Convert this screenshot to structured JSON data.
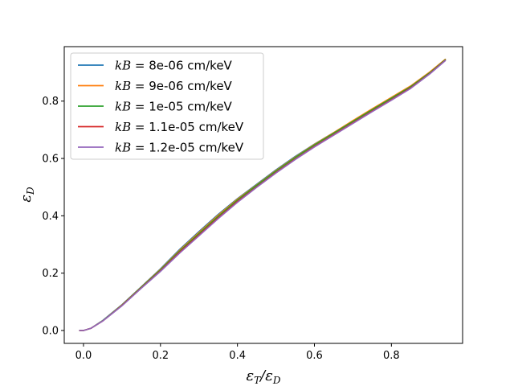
{
  "chart_data": {
    "type": "line",
    "title": "",
    "xlabel": "εT/εD",
    "ylabel": "εD",
    "xlim": [
      -0.05,
      0.985
    ],
    "ylim": [
      -0.045,
      0.99
    ],
    "xticks": [
      0.0,
      0.2,
      0.4,
      0.6,
      0.8
    ],
    "yticks": [
      0.0,
      0.2,
      0.4,
      0.6,
      0.8
    ],
    "xtick_labels": [
      "0.0",
      "0.2",
      "0.4",
      "0.6",
      "0.8"
    ],
    "ytick_labels": [
      "0.0",
      "0.2",
      "0.4",
      "0.6",
      "0.8"
    ],
    "grid": false,
    "legend_position": "top-left",
    "series": [
      {
        "name": "kB = 8e-06 cm/keV",
        "kb_label": "kB",
        "value_label": " = 8e-06 cm/keV",
        "color": "#1f77b4",
        "x": [
          -0.01,
          0.0,
          0.02,
          0.05,
          0.1,
          0.15,
          0.2,
          0.25,
          0.3,
          0.35,
          0.4,
          0.45,
          0.5,
          0.55,
          0.6,
          0.65,
          0.7,
          0.75,
          0.8,
          0.85,
          0.9,
          0.94
        ],
        "y": [
          0.0,
          0.0,
          0.008,
          0.035,
          0.09,
          0.152,
          0.215,
          0.283,
          0.345,
          0.405,
          0.46,
          0.51,
          0.56,
          0.607,
          0.65,
          0.69,
          0.73,
          0.77,
          0.81,
          0.85,
          0.9,
          0.945
        ]
      },
      {
        "name": "kB = 9e-06 cm/keV",
        "kb_label": "kB",
        "value_label": " = 9e-06 cm/keV",
        "color": "#ff7f0e",
        "x": [
          -0.01,
          0.0,
          0.02,
          0.05,
          0.1,
          0.15,
          0.2,
          0.25,
          0.3,
          0.35,
          0.4,
          0.45,
          0.5,
          0.55,
          0.6,
          0.65,
          0.7,
          0.75,
          0.8,
          0.85,
          0.9,
          0.94
        ],
        "y": [
          0.0,
          0.0,
          0.008,
          0.034,
          0.089,
          0.151,
          0.213,
          0.28,
          0.342,
          0.402,
          0.458,
          0.508,
          0.558,
          0.605,
          0.649,
          0.69,
          0.732,
          0.773,
          0.813,
          0.853,
          0.902,
          0.946
        ]
      },
      {
        "name": "kB = 1e-05 cm/keV",
        "kb_label": "kB",
        "value_label": " = 1e-05 cm/keV",
        "color": "#2ca02c",
        "x": [
          -0.01,
          0.0,
          0.02,
          0.05,
          0.1,
          0.15,
          0.2,
          0.25,
          0.3,
          0.35,
          0.4,
          0.45,
          0.5,
          0.55,
          0.6,
          0.65,
          0.7,
          0.75,
          0.8,
          0.85,
          0.9,
          0.94
        ],
        "y": [
          0.0,
          0.0,
          0.008,
          0.034,
          0.088,
          0.15,
          0.211,
          0.277,
          0.338,
          0.398,
          0.455,
          0.506,
          0.556,
          0.603,
          0.647,
          0.688,
          0.729,
          0.77,
          0.81,
          0.85,
          0.899,
          0.944
        ]
      },
      {
        "name": "kB = 1.1e-05 cm/keV",
        "kb_label": "kB",
        "value_label": " = 1.1e-05 cm/keV",
        "color": "#d62728",
        "x": [
          -0.01,
          0.0,
          0.02,
          0.05,
          0.1,
          0.15,
          0.2,
          0.25,
          0.3,
          0.35,
          0.4,
          0.45,
          0.5,
          0.55,
          0.6,
          0.65,
          0.7,
          0.75,
          0.8,
          0.85,
          0.9,
          0.94
        ],
        "y": [
          0.0,
          0.0,
          0.008,
          0.033,
          0.087,
          0.148,
          0.208,
          0.273,
          0.333,
          0.393,
          0.45,
          0.501,
          0.551,
          0.598,
          0.642,
          0.683,
          0.724,
          0.765,
          0.805,
          0.846,
          0.896,
          0.942
        ]
      },
      {
        "name": "kB = 1.2e-05 cm/keV",
        "kb_label": "kB",
        "value_label": " = 1.2e-05 cm/keV",
        "color": "#9467bd",
        "x": [
          -0.01,
          0.0,
          0.02,
          0.05,
          0.1,
          0.15,
          0.2,
          0.25,
          0.3,
          0.35,
          0.4,
          0.45,
          0.5,
          0.55,
          0.6,
          0.65,
          0.7,
          0.75,
          0.8,
          0.85,
          0.9,
          0.94
        ],
        "y": [
          0.0,
          0.0,
          0.008,
          0.033,
          0.086,
          0.147,
          0.206,
          0.27,
          0.33,
          0.39,
          0.447,
          0.499,
          0.549,
          0.596,
          0.64,
          0.681,
          0.722,
          0.763,
          0.803,
          0.844,
          0.895,
          0.941
        ]
      }
    ]
  }
}
